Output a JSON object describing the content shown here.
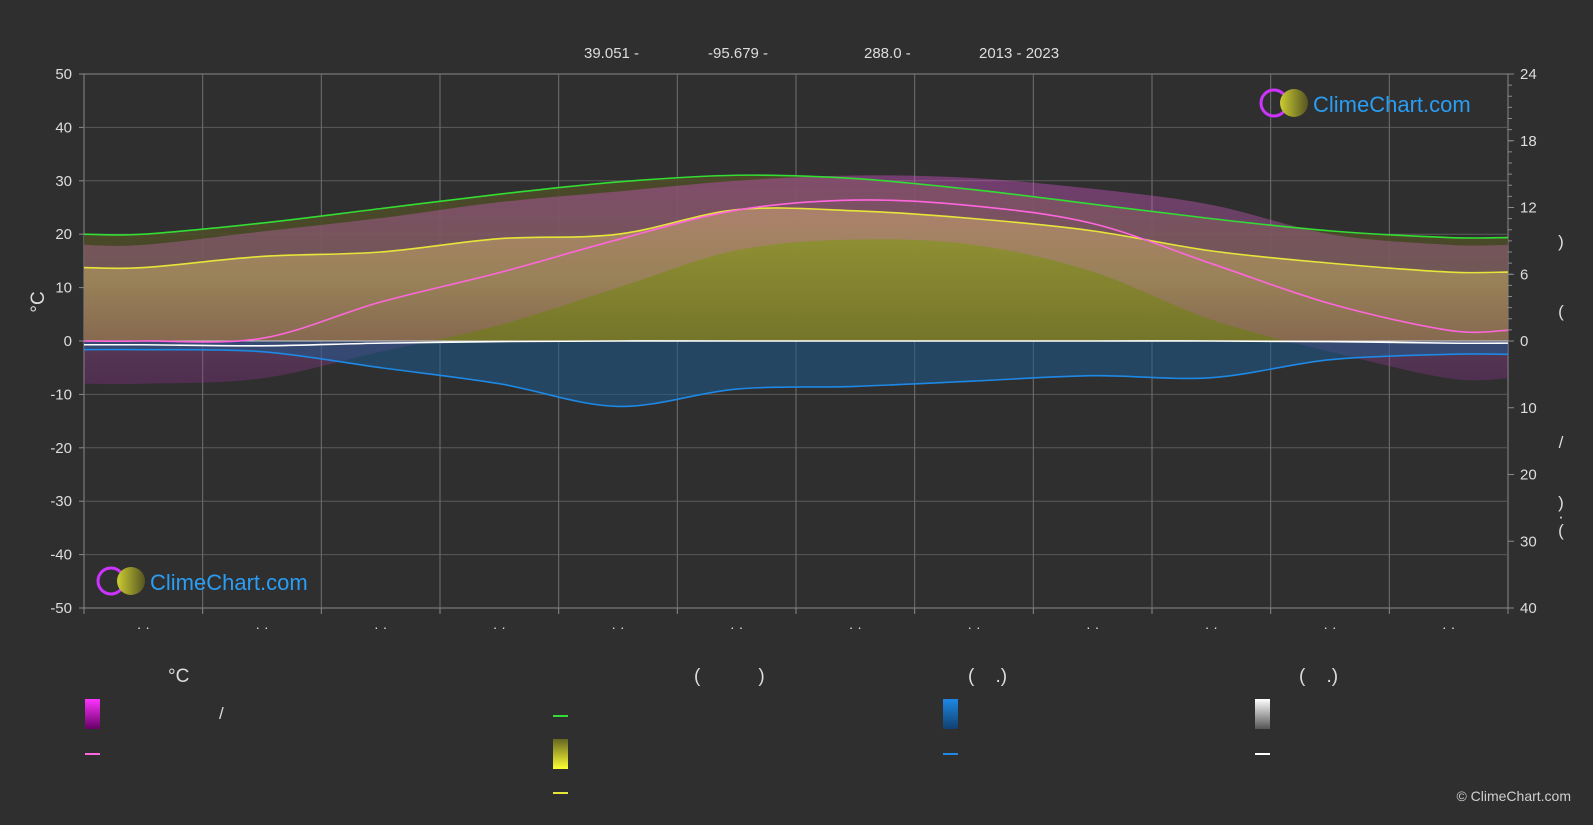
{
  "header": {
    "lat": "39.051 -",
    "lon": "-95.679 -",
    "elevation": "288.0 -",
    "years": "2013 - 2023"
  },
  "brand": {
    "name": "ClimeChart.com",
    "copyright": "© ClimeChart.com"
  },
  "colors": {
    "background": "#2f2f2f",
    "daylight": "#33dd33",
    "sunshine": "#e6e63a",
    "temperature_avg": "#ff66dd",
    "temperature_range": "#dd22dd",
    "rain": "#1e88e5",
    "snow": "#ffffff",
    "brand_text": "#2a9df4"
  },
  "legend": {
    "col1_header": "°C",
    "col1_item1": "/",
    "col2_header": "(           )",
    "col3_header": "(    .)",
    "col4_header": "(    .)"
  },
  "chart_data": {
    "type": "line",
    "x_months": 12,
    "month_tick_labels": [
      "· ·",
      "· ·",
      "· ·",
      "· ·",
      "· ·",
      "· ·",
      "· ·",
      "· ·",
      "· ·",
      "· ·",
      "· ·",
      "· ·"
    ],
    "left_axis": {
      "label": "°C",
      "ylim": [
        -50,
        50
      ],
      "ticks": [
        50,
        40,
        30,
        20,
        10,
        0,
        -10,
        -20,
        -30,
        -40,
        -50
      ]
    },
    "right_axis_top": {
      "ylim": [
        0,
        24
      ],
      "ticks": [
        24,
        18,
        12,
        6,
        0
      ]
    },
    "right_axis_bottom": {
      "ylim": [
        0,
        40
      ],
      "ticks": [
        10,
        20,
        30,
        40
      ]
    },
    "right_axis_label_glyphs": [
      ")",
      "(",
      "/",
      ")",
      "·",
      "("
    ],
    "grid": true,
    "series": [
      {
        "key": "daylight",
        "axis": "hours",
        "values": [
          9.6,
          10.6,
          11.9,
          13.2,
          14.3,
          14.9,
          14.6,
          13.6,
          12.3,
          11.0,
          9.9,
          9.3
        ]
      },
      {
        "key": "sunshine",
        "axis": "hours",
        "values": [
          6.6,
          7.6,
          8.0,
          9.2,
          9.6,
          11.8,
          11.7,
          11.0,
          9.9,
          8.1,
          7.0,
          6.2
        ]
      },
      {
        "key": "temp_mean",
        "axis": "temp",
        "values": [
          0,
          0.5,
          7.3,
          12.8,
          19.0,
          24.5,
          26.4,
          25.3,
          22.0,
          14.5,
          7.0,
          2.0
        ]
      },
      {
        "key": "temp_max_band",
        "axis": "temp",
        "values": [
          18,
          20.5,
          23,
          26,
          28,
          30,
          31,
          30.5,
          28.5,
          25.5,
          20,
          18
        ]
      },
      {
        "key": "temp_min_band",
        "axis": "temp",
        "values": [
          -8,
          -7,
          -2,
          3,
          10,
          17,
          19,
          18,
          13,
          4,
          -2,
          -7
        ]
      },
      {
        "key": "snow_line",
        "axis": "temp",
        "values": [
          -0.7,
          -0.9,
          -0.4,
          -0.1,
          0,
          0,
          0,
          0,
          0,
          0,
          -0.1,
          -0.4
        ]
      },
      {
        "key": "rain_mm_day",
        "axis": "precip",
        "values": [
          1.3,
          1.6,
          4.0,
          6.4,
          9.8,
          7.2,
          6.8,
          6.0,
          5.2,
          5.5,
          2.8,
          2.0
        ]
      }
    ]
  }
}
